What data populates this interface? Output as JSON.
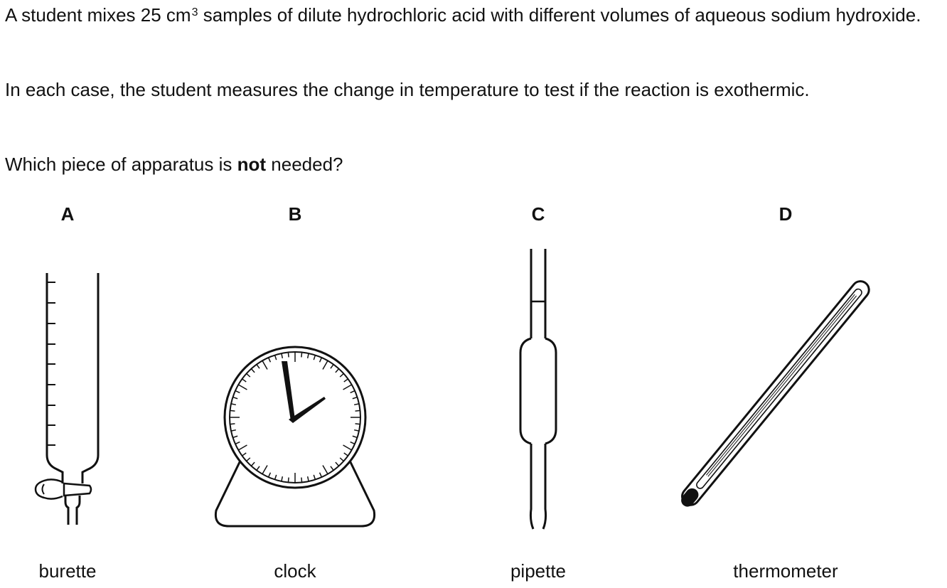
{
  "question": {
    "para1": {
      "pre": "A student mixes 25 cm",
      "sup": "3",
      "post": " samples of dilute hydrochloric acid with different volumes of aqueous sodium hydroxide."
    },
    "para2": "In each case, the student measures the change in temperature to test if the reaction is exothermic.",
    "para3": {
      "pre": "Which piece of apparatus is ",
      "bold": "not",
      "post": " needed?"
    }
  },
  "options": [
    {
      "letter": "A",
      "name": "burette",
      "icon": "burette-icon"
    },
    {
      "letter": "B",
      "name": "clock",
      "icon": "clock-icon"
    },
    {
      "letter": "C",
      "name": "pipette",
      "icon": "pipette-icon"
    },
    {
      "letter": "D",
      "name": "thermometer",
      "icon": "thermometer-icon"
    }
  ]
}
